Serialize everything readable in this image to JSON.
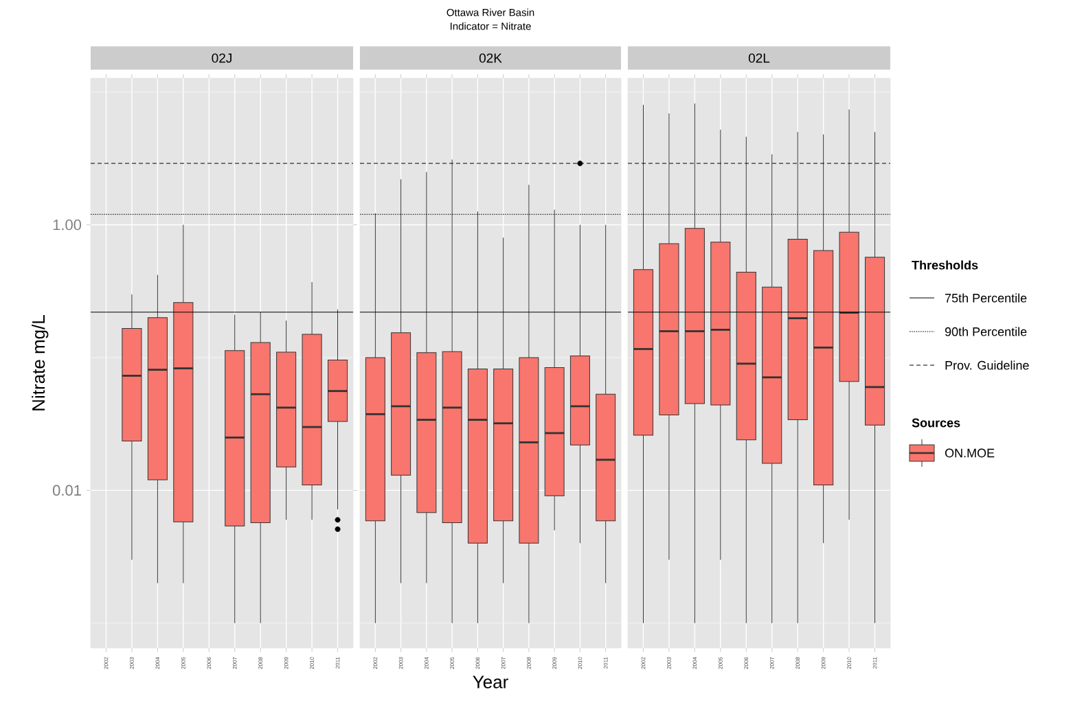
{
  "chart_data": [
    {
      "type": "box",
      "title": "02J",
      "ylabel": "Nitrate mg/L",
      "log": true,
      "grid": true,
      "color": "#f8766d",
      "ylim": [
        0.00065,
        12.7
      ],
      "yticks": [
        {
          "value": 1,
          "label": "1.00"
        },
        {
          "value": 0.01,
          "label": "0.01"
        }
      ],
      "categories": [
        "2002",
        "2003",
        "2004",
        "2005",
        "2006",
        "2007",
        "2008",
        "2009",
        "2010",
        "2011"
      ],
      "boxes": [
        null,
        {
          "low": 0.003,
          "q1": 0.0235,
          "median": 0.073,
          "q3": 0.166,
          "high": 0.3
        },
        {
          "low": 0.002,
          "q1": 0.012,
          "median": 0.081,
          "q3": 0.2,
          "high": 0.42
        },
        {
          "low": 0.002,
          "q1": 0.0058,
          "median": 0.083,
          "q3": 0.26,
          "high": 1.0
        },
        null,
        {
          "low": 0.001,
          "q1": 0.0054,
          "median": 0.025,
          "q3": 0.113,
          "high": 0.21
        },
        {
          "low": 0.001,
          "q1": 0.0057,
          "median": 0.053,
          "q3": 0.13,
          "high": 0.22
        },
        {
          "low": 0.006,
          "q1": 0.015,
          "median": 0.042,
          "q3": 0.11,
          "high": 0.19
        },
        {
          "low": 0.006,
          "q1": 0.011,
          "median": 0.03,
          "q3": 0.15,
          "high": 0.37
        },
        {
          "low": 0.0072,
          "q1": 0.033,
          "median": 0.056,
          "q3": 0.096,
          "high": 0.23,
          "outliers": [
            0.006,
            0.0051
          ]
        }
      ],
      "ref_lines": [
        {
          "axis": "y",
          "value": 0.22,
          "line_style": "solid",
          "color": "#000000"
        },
        {
          "axis": "y",
          "value": 1.2,
          "line_style": "dotted",
          "color": "#000000"
        },
        {
          "axis": "y",
          "value": 2.9,
          "line_style": "dashed",
          "color": "#000000"
        }
      ]
    },
    {
      "type": "box",
      "title": "02K",
      "xlabel": "Year",
      "log": true,
      "grid": true,
      "color": "#f8766d",
      "tick_labels": "x",
      "annotations": [
        "Ottawa River Basin",
        "Indicator = Nitrate"
      ],
      "ylim": [
        0.00065,
        12.7
      ],
      "categories": [
        "2002",
        "2003",
        "2004",
        "2005",
        "2006",
        "2007",
        "2008",
        "2009",
        "2010",
        "2011"
      ],
      "boxes": [
        {
          "low": 0.001,
          "q1": 0.0059,
          "median": 0.0375,
          "q3": 0.1,
          "high": 1.22
        },
        {
          "low": 0.002,
          "q1": 0.013,
          "median": 0.043,
          "q3": 0.154,
          "high": 2.2
        },
        {
          "low": 0.002,
          "q1": 0.0068,
          "median": 0.034,
          "q3": 0.109,
          "high": 2.5
        },
        {
          "low": 0.001,
          "q1": 0.0057,
          "median": 0.042,
          "q3": 0.111,
          "high": 3.1
        },
        {
          "low": 0.001,
          "q1": 0.004,
          "median": 0.034,
          "q3": 0.082,
          "high": 1.26
        },
        {
          "low": 0.002,
          "q1": 0.0059,
          "median": 0.032,
          "q3": 0.082,
          "high": 0.8
        },
        {
          "low": 0.001,
          "q1": 0.004,
          "median": 0.023,
          "q3": 0.1,
          "high": 2.0
        },
        {
          "low": 0.005,
          "q1": 0.0091,
          "median": 0.027,
          "q3": 0.084,
          "high": 1.3
        },
        {
          "low": 0.004,
          "q1": 0.022,
          "median": 0.043,
          "q3": 0.103,
          "high": 1.0,
          "outliers": [
            2.9
          ]
        },
        {
          "low": 0.002,
          "q1": 0.0059,
          "median": 0.017,
          "q3": 0.053,
          "high": 1.0
        }
      ],
      "ref_lines": [
        {
          "axis": "y",
          "value": 0.22,
          "line_style": "solid",
          "color": "#000000"
        },
        {
          "axis": "y",
          "value": 1.2,
          "line_style": "dotted",
          "color": "#000000"
        },
        {
          "axis": "y",
          "value": 2.9,
          "line_style": "dashed",
          "color": "#000000"
        }
      ]
    },
    {
      "type": "box",
      "title": "02L",
      "log": true,
      "grid": true,
      "tick_labels": "x",
      "legend": "right",
      "legend_title": "Sources",
      "annotations": [
        "Thresholds"
      ],
      "ylim": [
        0.00065,
        12.7
      ],
      "categories": [
        "2002",
        "2003",
        "2004",
        "2005",
        "2006",
        "2007",
        "2008",
        "2009",
        "2010",
        "2011"
      ],
      "series": [
        {
          "name": "ON.MOE",
          "color": "#f8766d",
          "boxes": [
            {
              "low": 0.001,
              "q1": 0.026,
              "median": 0.116,
              "q3": 0.46,
              "high": 8.0
            },
            {
              "low": 0.003,
              "q1": 0.037,
              "median": 0.158,
              "q3": 0.72,
              "high": 6.9
            },
            {
              "low": 0.001,
              "q1": 0.045,
              "median": 0.158,
              "q3": 0.94,
              "high": 8.2
            },
            {
              "low": 0.003,
              "q1": 0.044,
              "median": 0.162,
              "q3": 0.74,
              "high": 5.2
            },
            {
              "low": 0.001,
              "q1": 0.024,
              "median": 0.09,
              "q3": 0.44,
              "high": 4.6
            },
            {
              "low": 0.001,
              "q1": 0.016,
              "median": 0.071,
              "q3": 0.34,
              "high": 3.4
            },
            {
              "low": 0.001,
              "q1": 0.034,
              "median": 0.198,
              "q3": 0.78,
              "high": 5.0
            },
            {
              "low": 0.004,
              "q1": 0.011,
              "median": 0.119,
              "q3": 0.64,
              "high": 4.8
            },
            {
              "low": 0.006,
              "q1": 0.066,
              "median": 0.218,
              "q3": 0.88,
              "high": 7.4
            },
            {
              "low": 0.001,
              "q1": 0.031,
              "median": 0.06,
              "q3": 0.57,
              "high": 5.0
            }
          ]
        }
      ],
      "ref_lines": [
        {
          "axis": "y",
          "value": 0.22,
          "line_style": "solid",
          "color": "#000000",
          "label": "75th Percentile"
        },
        {
          "axis": "y",
          "value": 1.2,
          "line_style": "dotted",
          "color": "#000000",
          "label": "90th Percentile"
        },
        {
          "axis": "y",
          "value": 2.9,
          "line_style": "dashed",
          "color": "#000000",
          "label": "Prov. Guideline"
        }
      ]
    }
  ]
}
